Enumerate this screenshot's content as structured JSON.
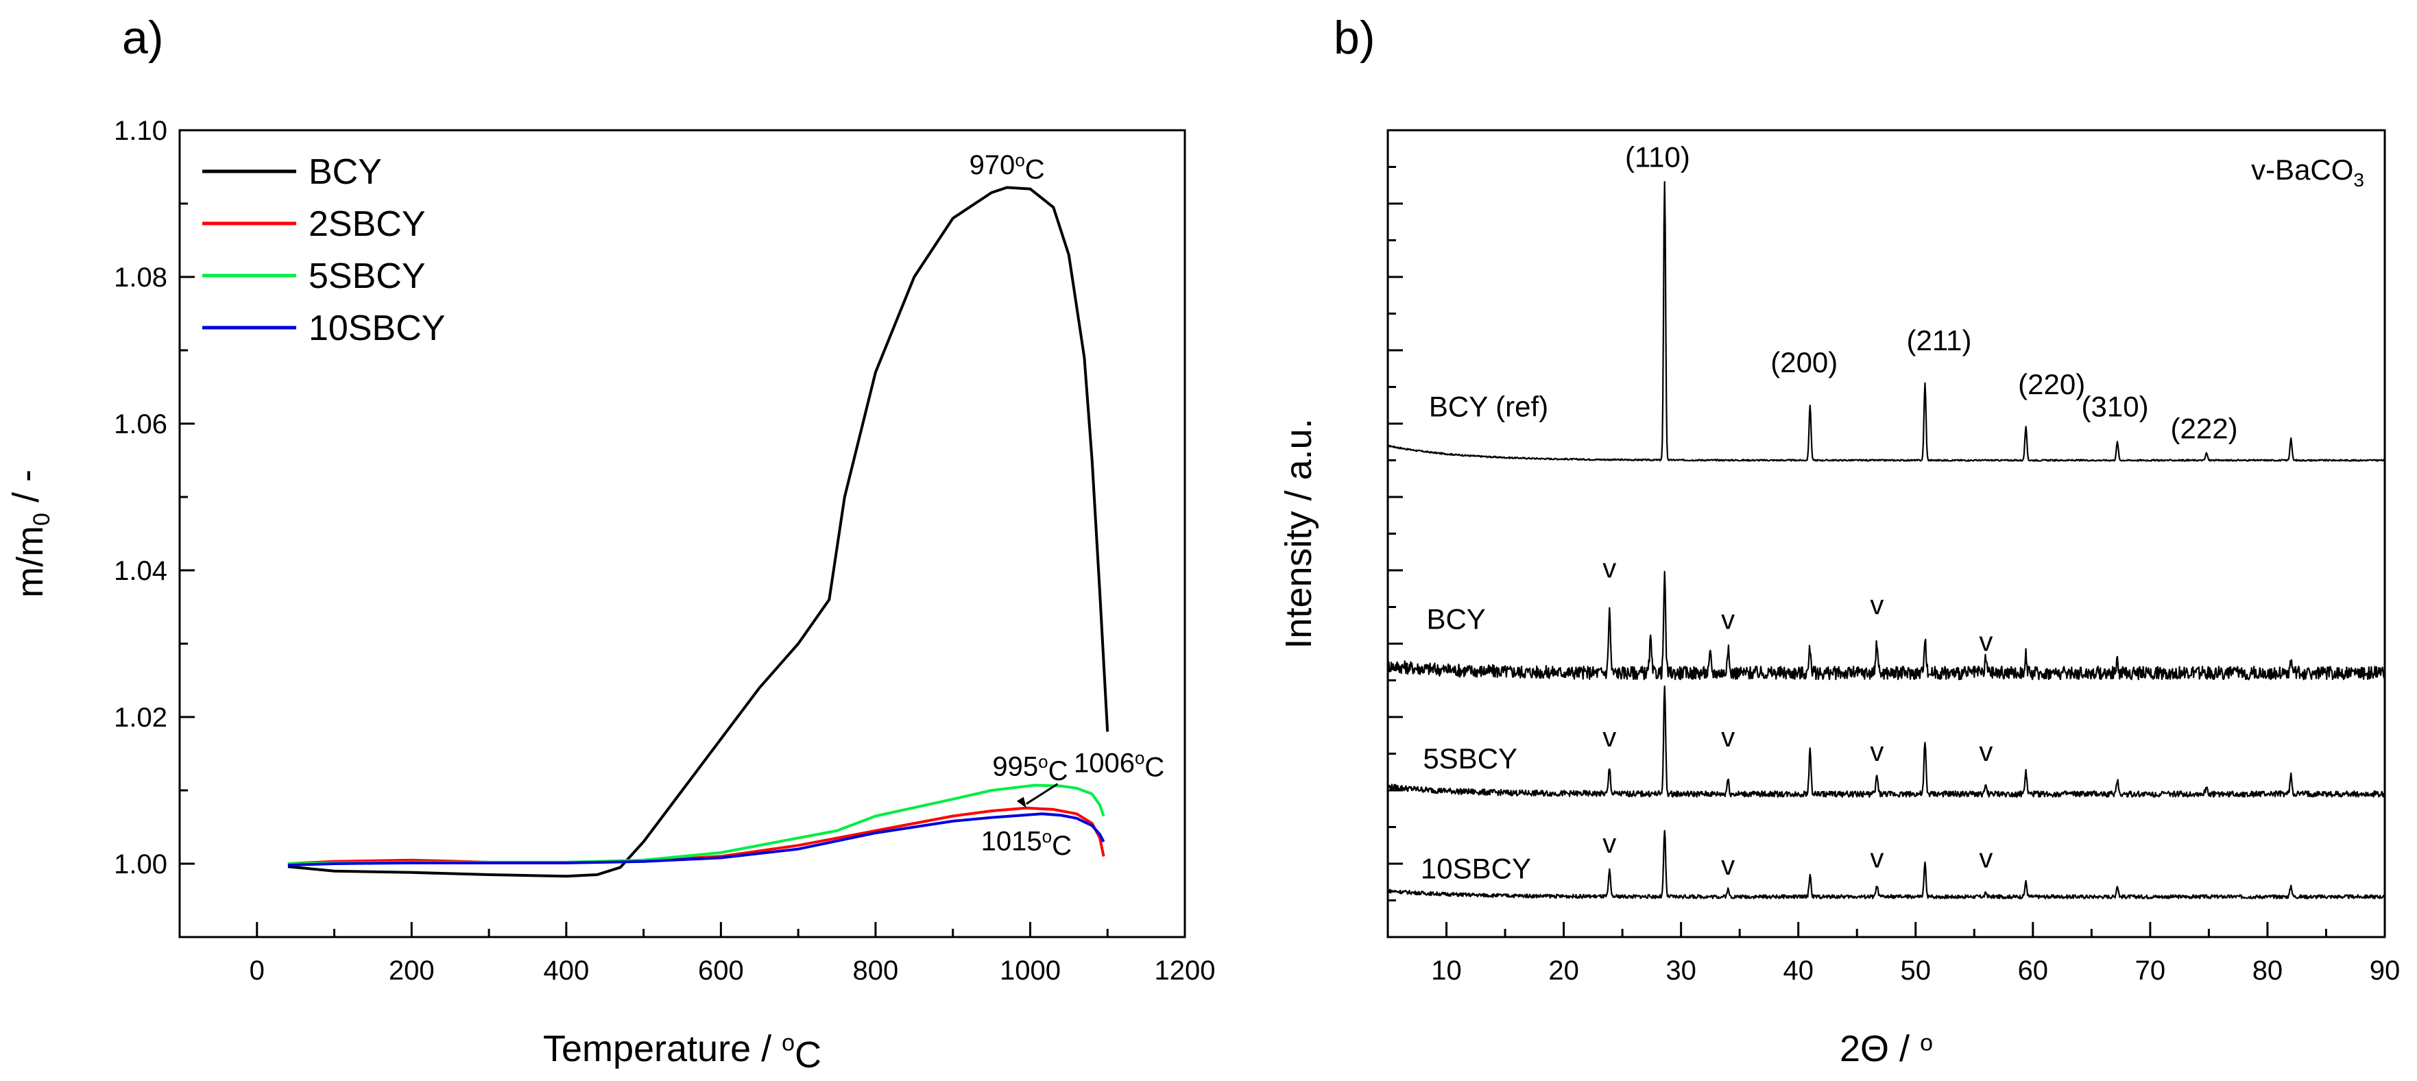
{
  "figure": {
    "panel_a_label": "a)",
    "panel_b_label": "b)"
  },
  "chart_data": [
    {
      "type": "line",
      "panel": "a)",
      "xlabel": "Temperature / °C",
      "ylabel": "m/m0 / -",
      "xlim": [
        -100,
        1200
      ],
      "ylim": [
        0.99,
        1.1
      ],
      "xticks": [
        0,
        200,
        400,
        600,
        800,
        1000,
        1200
      ],
      "yticks": [
        1.0,
        1.02,
        1.04,
        1.06,
        1.08,
        1.1
      ],
      "ytick_labels": [
        "1.00",
        "1.02",
        "1.04",
        "1.06",
        "1.08",
        "1.10"
      ],
      "legend_position": "top-left",
      "series": [
        {
          "name": "BCY",
          "color": "#000000",
          "x": [
            40,
            100,
            200,
            300,
            400,
            440,
            470,
            500,
            550,
            600,
            650,
            700,
            740,
            760,
            800,
            850,
            900,
            950,
            970,
            1000,
            1030,
            1050,
            1070,
            1080,
            1090,
            1100
          ],
          "y": [
            0.9996,
            0.999,
            0.9988,
            0.9985,
            0.9983,
            0.9985,
            0.9995,
            1.003,
            1.01,
            1.017,
            1.024,
            1.03,
            1.036,
            1.05,
            1.067,
            1.08,
            1.088,
            1.0915,
            1.0922,
            1.092,
            1.0895,
            1.083,
            1.069,
            1.055,
            1.037,
            1.018
          ]
        },
        {
          "name": "2SBCY",
          "color": "#ff0000",
          "x": [
            40,
            100,
            200,
            300,
            400,
            500,
            600,
            700,
            800,
            900,
            950,
            995,
            1030,
            1060,
            1080,
            1090,
            1095
          ],
          "y": [
            1.0,
            1.0003,
            1.0005,
            1.0002,
            1.0002,
            1.0004,
            1.001,
            1.0025,
            1.0045,
            1.0065,
            1.0072,
            1.0076,
            1.0074,
            1.0068,
            1.0055,
            1.0035,
            1.001
          ]
        },
        {
          "name": "5SBCY",
          "color": "#00ee44",
          "x": [
            40,
            100,
            200,
            300,
            400,
            500,
            600,
            700,
            750,
            800,
            900,
            950,
            1006,
            1040,
            1060,
            1080,
            1090,
            1095
          ],
          "y": [
            1.0,
            1.0001,
            1.0002,
            1.0002,
            1.0002,
            1.0005,
            1.0015,
            1.0035,
            1.0045,
            1.0065,
            1.0088,
            1.01,
            1.0107,
            1.0106,
            1.0103,
            1.0095,
            1.008,
            1.0065
          ]
        },
        {
          "name": "10SBCY",
          "color": "#0000dd",
          "x": [
            40,
            100,
            200,
            300,
            400,
            500,
            600,
            700,
            800,
            900,
            950,
            1015,
            1040,
            1060,
            1080,
            1090,
            1095
          ],
          "y": [
            0.9998,
            1.0,
            1.0001,
            1.0001,
            1.0001,
            1.0003,
            1.0008,
            1.002,
            1.0042,
            1.0058,
            1.0063,
            1.0068,
            1.0066,
            1.0062,
            1.0052,
            1.004,
            1.003
          ]
        }
      ],
      "annotations": [
        {
          "text": "970°C",
          "x": 970,
          "y": 1.094
        },
        {
          "text": "995°C",
          "x": 1000,
          "y": 1.012,
          "arrow_to": [
            995,
            1.0076
          ]
        },
        {
          "text": "1006°C",
          "x": 1115,
          "y": 1.0125
        },
        {
          "text": "1015°C",
          "x": 995,
          "y": 1.0018
        }
      ]
    },
    {
      "type": "line",
      "panel": "b)",
      "xlabel": "2Θ / °",
      "ylabel": "Intensity / a.u.",
      "xlim": [
        5,
        90
      ],
      "xticks": [
        10,
        20,
        30,
        40,
        50,
        60,
        70,
        80,
        90
      ],
      "ylim": [
        0,
        11
      ],
      "y_tick_labels_shown": false,
      "legend_text": "v-BaCO3",
      "legend_position": "top-right",
      "series": [
        {
          "name": "BCY (ref)",
          "color": "#000000",
          "baseline": 6.5,
          "tail_rise": 0.2,
          "noise": 0.02,
          "peaks": [
            {
              "x": 28.6,
              "h": 3.8
            },
            {
              "x": 41.0,
              "h": 0.75
            },
            {
              "x": 50.8,
              "h": 1.05
            },
            {
              "x": 59.4,
              "h": 0.45
            },
            {
              "x": 67.2,
              "h": 0.25
            },
            {
              "x": 74.8,
              "h": 0.1
            },
            {
              "x": 82.0,
              "h": 0.3
            }
          ]
        },
        {
          "name": "BCY",
          "color": "#000000",
          "baseline": 3.6,
          "tail_rise": 0.1,
          "noise": 0.18,
          "peaks": [
            {
              "x": 23.9,
              "h": 0.85
            },
            {
              "x": 27.4,
              "h": 0.45
            },
            {
              "x": 28.6,
              "h": 1.3
            },
            {
              "x": 32.5,
              "h": 0.25
            },
            {
              "x": 34.0,
              "h": 0.35
            },
            {
              "x": 41.0,
              "h": 0.35
            },
            {
              "x": 46.7,
              "h": 0.45
            },
            {
              "x": 50.8,
              "h": 0.5
            },
            {
              "x": 56.0,
              "h": 0.2
            },
            {
              "x": 59.4,
              "h": 0.25
            },
            {
              "x": 67.2,
              "h": 0.15
            },
            {
              "x": 82.0,
              "h": 0.15
            }
          ]
        },
        {
          "name": "5SBCY",
          "color": "#000000",
          "baseline": 1.95,
          "tail_rise": 0.1,
          "noise": 0.08,
          "peaks": [
            {
              "x": 23.9,
              "h": 0.35
            },
            {
              "x": 28.6,
              "h": 1.45
            },
            {
              "x": 34.0,
              "h": 0.2
            },
            {
              "x": 41.0,
              "h": 0.6
            },
            {
              "x": 46.7,
              "h": 0.25
            },
            {
              "x": 50.8,
              "h": 0.7
            },
            {
              "x": 56.0,
              "h": 0.1
            },
            {
              "x": 59.4,
              "h": 0.3
            },
            {
              "x": 67.2,
              "h": 0.2
            },
            {
              "x": 74.8,
              "h": 0.1
            },
            {
              "x": 82.0,
              "h": 0.25
            }
          ]
        },
        {
          "name": "10SBCY",
          "color": "#000000",
          "baseline": 0.55,
          "tail_rise": 0.08,
          "noise": 0.05,
          "peaks": [
            {
              "x": 23.9,
              "h": 0.35
            },
            {
              "x": 28.6,
              "h": 0.9
            },
            {
              "x": 34.0,
              "h": 0.1
            },
            {
              "x": 41.0,
              "h": 0.3
            },
            {
              "x": 46.7,
              "h": 0.15
            },
            {
              "x": 50.8,
              "h": 0.45
            },
            {
              "x": 56.0,
              "h": 0.05
            },
            {
              "x": 59.4,
              "h": 0.2
            },
            {
              "x": 67.2,
              "h": 0.15
            },
            {
              "x": 82.0,
              "h": 0.15
            }
          ]
        }
      ],
      "sample_labels": [
        {
          "text": "BCY (ref)",
          "x": 8.5,
          "y": 7.1
        },
        {
          "text": "BCY",
          "x": 8.3,
          "y": 4.2
        },
        {
          "text": "5SBCY",
          "x": 8.0,
          "y": 2.3
        },
        {
          "text": "10SBCY",
          "x": 7.8,
          "y": 0.8
        }
      ],
      "reflections": [
        {
          "text": "(110)",
          "x": 28.0,
          "y": 10.5
        },
        {
          "text": "(200)",
          "x": 40.5,
          "y": 7.7
        },
        {
          "text": "(211)",
          "x": 52.0,
          "y": 8.0
        },
        {
          "text": "(220)",
          "x": 61.6,
          "y": 7.4
        },
        {
          "text": "(310)",
          "x": 67.0,
          "y": 7.1
        },
        {
          "text": "(222)",
          "x": 74.6,
          "y": 6.8
        }
      ],
      "carbonate_markers": [
        {
          "text": "v",
          "x": 23.9,
          "y": 4.9
        },
        {
          "text": "v",
          "x": 34.0,
          "y": 4.2
        },
        {
          "text": "v",
          "x": 46.7,
          "y": 4.4
        },
        {
          "text": "v",
          "x": 56.0,
          "y": 3.9
        },
        {
          "text": "v",
          "x": 23.9,
          "y": 2.6
        },
        {
          "text": "v",
          "x": 34.0,
          "y": 2.6
        },
        {
          "text": "v",
          "x": 46.7,
          "y": 2.4
        },
        {
          "text": "v",
          "x": 56.0,
          "y": 2.4
        },
        {
          "text": "v",
          "x": 23.9,
          "y": 1.15
        },
        {
          "text": "v",
          "x": 34.0,
          "y": 0.85
        },
        {
          "text": "v",
          "x": 46.7,
          "y": 0.95
        },
        {
          "text": "v",
          "x": 56.0,
          "y": 0.95
        }
      ]
    }
  ]
}
